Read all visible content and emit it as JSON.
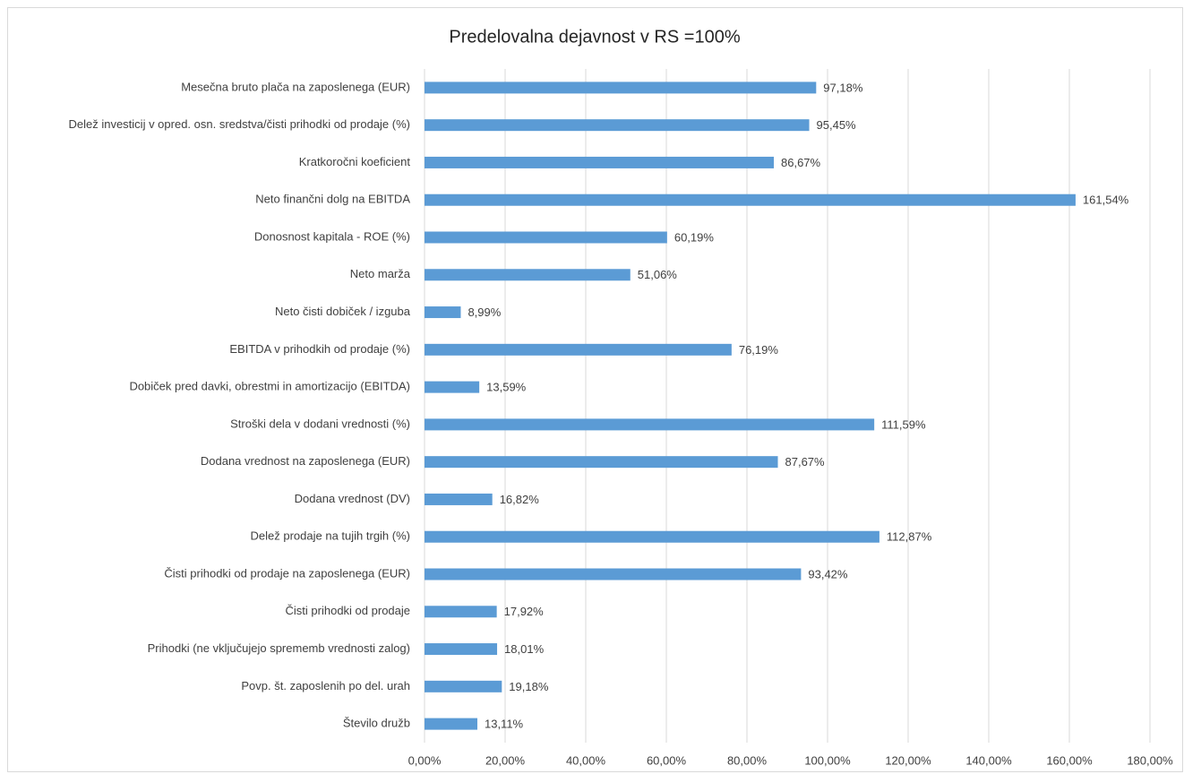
{
  "chart_data": {
    "type": "barh",
    "title": "Predelovalna dejavnost v RS =100%",
    "categories": [
      "Mesečna bruto plača na zaposlenega (EUR)",
      "Delež investicij v opred. osn. sredstva/čisti prihodki od prodaje (%)",
      "Kratkoročni koeficient",
      "Neto finančni dolg na EBITDA",
      "Donosnost kapitala - ROE (%)",
      "Neto marža",
      "Neto čisti dobiček / izguba",
      "EBITDA v prihodkih od prodaje (%)",
      "Dobiček pred davki, obrestmi in amortizacijo (EBITDA)",
      "Stroški dela v dodani vrednosti (%)",
      "Dodana vrednost na zaposlenega (EUR)",
      "Dodana vrednost (DV)",
      "Delež prodaje na tujih trgih (%)",
      "Čisti prihodki od prodaje na zaposlenega (EUR)",
      "Čisti prihodki od prodaje",
      "Prihodki (ne vključujejo sprememb vrednosti zalog)",
      "Povp. št. zaposlenih po del. urah",
      "Število družb"
    ],
    "values": [
      97.18,
      95.45,
      86.67,
      161.54,
      60.19,
      51.06,
      8.99,
      76.19,
      13.59,
      111.59,
      87.67,
      16.82,
      112.87,
      93.42,
      17.92,
      18.01,
      19.18,
      13.11
    ],
    "value_labels": [
      "97,18%",
      "95,45%",
      "86,67%",
      "161,54%",
      "60,19%",
      "51,06%",
      "8,99%",
      "76,19%",
      "13,59%",
      "111,59%",
      "87,67%",
      "16,82%",
      "112,87%",
      "93,42%",
      "17,92%",
      "18,01%",
      "19,18%",
      "13,11%"
    ],
    "color": "#5b9bd5",
    "xlim": [
      0,
      180
    ],
    "xticks": [
      {
        "value": 0,
        "label": "0,00%"
      },
      {
        "value": 20,
        "label": "20,00%"
      },
      {
        "value": 40,
        "label": "40,00%"
      },
      {
        "value": 60,
        "label": "60,00%"
      },
      {
        "value": 80,
        "label": "80,00%"
      },
      {
        "value": 100,
        "label": "100,00%"
      },
      {
        "value": 120,
        "label": "120,00%"
      },
      {
        "value": 140,
        "label": "140,00%"
      },
      {
        "value": 160,
        "label": "160,00%"
      },
      {
        "value": 180,
        "label": "180,00%"
      }
    ],
    "grid": true
  }
}
